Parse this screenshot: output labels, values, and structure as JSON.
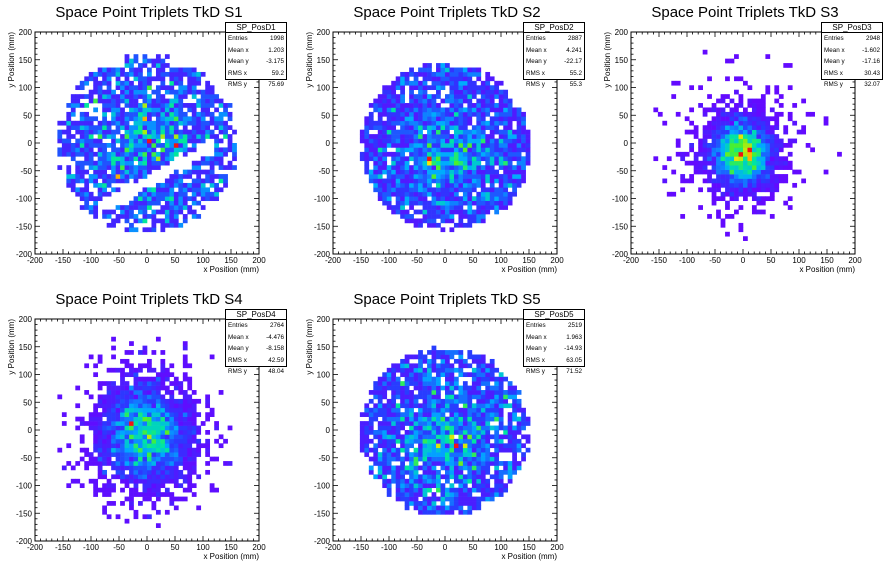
{
  "chart_data": [
    {
      "type": "heatmap",
      "title": "Space Point Triplets TkD S1",
      "xlabel": "x Position (mm)",
      "ylabel": "y Position (mm)",
      "xlim": [
        -200,
        200
      ],
      "ylim": [
        -200,
        200
      ],
      "xticks": [
        "-200",
        "-150",
        "-100",
        "-50",
        "0",
        "50",
        "100",
        "150",
        "200"
      ],
      "yticks": [
        "200",
        "150",
        "100",
        "50",
        "0",
        "-50",
        "-100",
        "-150",
        "-200"
      ],
      "stats": {
        "name": "SP_PosD1",
        "rows": [
          [
            "Entries",
            "1998"
          ],
          [
            "Mean x",
            "1.203"
          ],
          [
            "Mean y",
            "-3.175"
          ],
          [
            "RMS x",
            "59.2"
          ],
          [
            "RMS y",
            "75.69"
          ]
        ]
      },
      "distribution": {
        "shape": "disk-with-gap",
        "radius": 160,
        "center": [
          0,
          0
        ],
        "hotspot": [
          -50,
          -60
        ]
      }
    },
    {
      "type": "heatmap",
      "title": "Space Point Triplets TkD S2",
      "xlabel": "x Position (mm)",
      "ylabel": "y Position (mm)",
      "xlim": [
        -200,
        200
      ],
      "ylim": [
        -200,
        200
      ],
      "xticks": [
        "-200",
        "-150",
        "-100",
        "-50",
        "0",
        "50",
        "100",
        "150",
        "200"
      ],
      "yticks": [
        "200",
        "150",
        "100",
        "50",
        "0",
        "-50",
        "-100",
        "-150",
        "-200"
      ],
      "stats": {
        "name": "SP_PosD2",
        "rows": [
          [
            "Entries",
            "2887"
          ],
          [
            "Mean x",
            "4.241"
          ],
          [
            "Mean y",
            "-22.17"
          ],
          [
            "RMS x",
            "55.2"
          ],
          [
            "RMS y",
            "55.3"
          ]
        ]
      },
      "distribution": {
        "shape": "disk",
        "radius": 150,
        "center": [
          4,
          -22
        ],
        "hotspot": [
          -30,
          -40
        ]
      }
    },
    {
      "type": "heatmap",
      "title": "Space Point Triplets TkD S3",
      "xlabel": "x Position (mm)",
      "ylabel": "y Position (mm)",
      "xlim": [
        -200,
        200
      ],
      "ylim": [
        -200,
        200
      ],
      "xticks": [
        "-200",
        "-150",
        "-100",
        "-50",
        "0",
        "50",
        "100",
        "150",
        "200"
      ],
      "yticks": [
        "200",
        "150",
        "100",
        "50",
        "0",
        "-50",
        "-100",
        "-150",
        "-200"
      ],
      "stats": {
        "name": "SP_PosD3",
        "rows": [
          [
            "Entries",
            "2948"
          ],
          [
            "Mean x",
            "-1.602"
          ],
          [
            "Mean y",
            "-17.16"
          ],
          [
            "RMS x",
            "30.43"
          ],
          [
            "RMS y",
            "32.07"
          ]
        ]
      },
      "distribution": {
        "shape": "gaussian",
        "sigma": [
          30,
          32
        ],
        "center": [
          -2,
          -17
        ],
        "hotspot": [
          -5,
          -20
        ]
      }
    },
    {
      "type": "heatmap",
      "title": "Space Point Triplets TkD S4",
      "xlabel": "x Position (mm)",
      "ylabel": "y Position (mm)",
      "xlim": [
        -200,
        200
      ],
      "ylim": [
        -200,
        200
      ],
      "xticks": [
        "-200",
        "-150",
        "-100",
        "-50",
        "0",
        "50",
        "100",
        "150",
        "200"
      ],
      "yticks": [
        "200",
        "150",
        "100",
        "50",
        "0",
        "-50",
        "-100",
        "-150",
        "-200"
      ],
      "stats": {
        "name": "SP_PosD4",
        "rows": [
          [
            "Entries",
            "2764"
          ],
          [
            "Mean x",
            "-4.476"
          ],
          [
            "Mean y",
            "-8.158"
          ],
          [
            "RMS x",
            "42.59"
          ],
          [
            "RMS y",
            "48.04"
          ]
        ]
      },
      "distribution": {
        "shape": "gaussian",
        "sigma": [
          42,
          48
        ],
        "center": [
          -4,
          -8
        ],
        "hotspot": [
          0,
          -15
        ]
      }
    },
    {
      "type": "heatmap",
      "title": "Space Point Triplets TkD S5",
      "xlabel": "x Position (mm)",
      "ylabel": "y Position (mm)",
      "xlim": [
        -200,
        200
      ],
      "ylim": [
        -200,
        200
      ],
      "xticks": [
        "-200",
        "-150",
        "-100",
        "-50",
        "0",
        "50",
        "100",
        "150",
        "200"
      ],
      "yticks": [
        "200",
        "150",
        "100",
        "50",
        "0",
        "-50",
        "-100",
        "-150",
        "-200"
      ],
      "stats": {
        "name": "SP_PosD5",
        "rows": [
          [
            "Entries",
            "2519"
          ],
          [
            "Mean x",
            "1.963"
          ],
          [
            "Mean y",
            "-14.93"
          ],
          [
            "RMS x",
            "63.05"
          ],
          [
            "RMS y",
            "71.52"
          ]
        ]
      },
      "distribution": {
        "shape": "disk",
        "radius": 150,
        "center": [
          0,
          -10
        ],
        "hotspot": [
          20,
          -30
        ]
      }
    }
  ]
}
